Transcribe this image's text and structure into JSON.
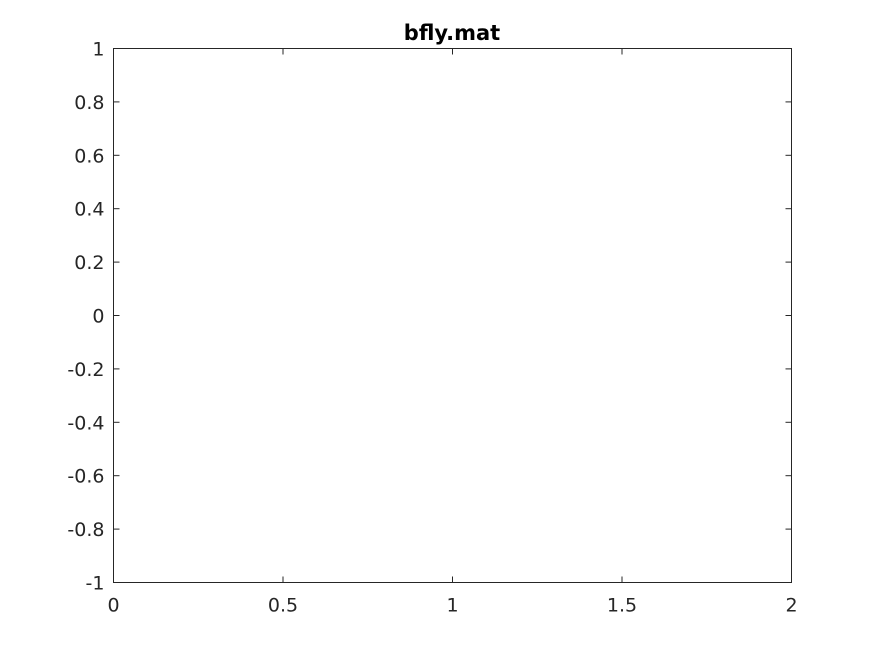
{
  "chart_data": {
    "type": "line",
    "title": "bfly.mat",
    "xlabel": "",
    "ylabel": "",
    "xlim": [
      0,
      2
    ],
    "ylim": [
      -1,
      1
    ],
    "xticks": [
      0,
      0.5,
      1,
      1.5,
      2
    ],
    "xtick_labels": [
      "0",
      "0.5",
      "1",
      "1.5",
      "2"
    ],
    "yticks": [
      1,
      0.8,
      0.6,
      0.4,
      0.2,
      0,
      -0.2,
      -0.4,
      -0.6,
      -0.8,
      -1
    ],
    "ytick_labels": [
      "1",
      "0.8",
      "0.6",
      "0.4",
      "0.2",
      "0",
      "-0.2",
      "-0.4",
      "-0.6",
      "-0.8",
      "-1"
    ],
    "series": [],
    "grid": false,
    "box": true,
    "colors": {
      "axes": "#262626",
      "title": "#000000",
      "background": "#ffffff"
    }
  }
}
